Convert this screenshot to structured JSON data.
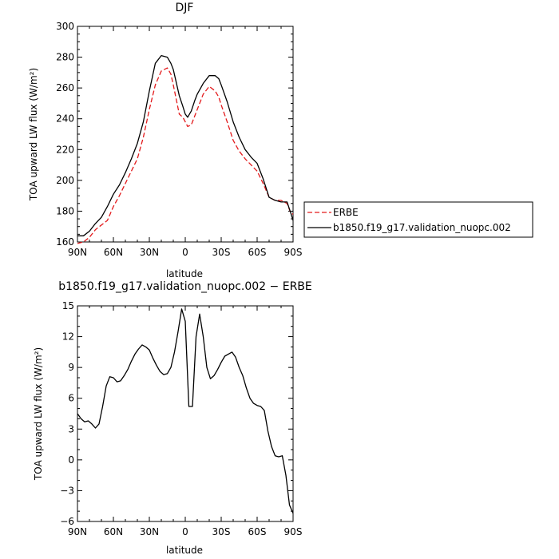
{
  "chart_data": [
    {
      "type": "line",
      "title": "DJF",
      "xlabel": "latitude",
      "ylabel": "TOA upward LW flux (W/m²)",
      "xlim": [
        90,
        -90
      ],
      "ylim": [
        160,
        300
      ],
      "xticks": [
        90,
        60,
        30,
        0,
        -30,
        -60,
        -90
      ],
      "xtick_labels": [
        "90N",
        "60N",
        "30N",
        "0",
        "30S",
        "60S",
        "90S"
      ],
      "yticks": [
        160,
        180,
        200,
        220,
        240,
        260,
        280,
        300
      ],
      "ytick_labels": [
        "160",
        "180",
        "200",
        "220",
        "240",
        "260",
        "280",
        "300"
      ],
      "legend_position": "right",
      "series": [
        {
          "name": "ERBE",
          "color": "#e31a1c",
          "dash": "dashed",
          "x": [
            90,
            85,
            80,
            75,
            70,
            65,
            60,
            55,
            50,
            45,
            40,
            35,
            30,
            25,
            20,
            15,
            12,
            10,
            5,
            2,
            0,
            -2,
            -5,
            -8,
            -10,
            -15,
            -20,
            -25,
            -28,
            -30,
            -35,
            -40,
            -45,
            -50,
            -55,
            -60,
            -65,
            -70,
            -75,
            -80,
            -85,
            -88,
            -90
          ],
          "y": [
            159,
            160,
            163,
            168,
            171,
            174,
            183,
            190,
            198,
            206,
            214,
            228,
            246,
            262,
            271,
            273,
            269,
            262,
            243,
            241,
            238,
            235,
            236,
            242,
            246,
            256,
            261,
            258,
            254,
            249,
            238,
            226,
            219,
            214,
            210,
            206,
            198,
            189,
            187,
            187,
            185,
            179,
            178
          ]
        },
        {
          "name": "b1850.f19_g17.validation_nuopc.002",
          "color": "#000000",
          "dash": "solid",
          "x": [
            90,
            85,
            80,
            75,
            70,
            65,
            60,
            55,
            50,
            45,
            40,
            35,
            30,
            25,
            20,
            15,
            12,
            10,
            5,
            2,
            0,
            -2,
            -5,
            -8,
            -10,
            -15,
            -20,
            -25,
            -28,
            -30,
            -35,
            -40,
            -45,
            -50,
            -55,
            -60,
            -65,
            -70,
            -75,
            -80,
            -85,
            -88,
            -90
          ],
          "y": [
            164,
            164,
            167,
            172,
            176,
            183,
            191,
            197,
            205,
            214,
            224,
            238,
            258,
            276,
            281,
            280,
            276,
            272,
            255,
            248,
            243,
            241,
            245,
            252,
            256,
            263,
            268,
            268,
            266,
            262,
            251,
            238,
            228,
            220,
            215,
            211,
            201,
            189,
            187,
            186,
            186,
            179,
            174
          ]
        }
      ]
    },
    {
      "type": "line",
      "title": "b1850.f19_g17.validation_nuopc.002 − ERBE",
      "xlabel": "latitude",
      "ylabel": "TOA upward LW flux (W/m²)",
      "xlim": [
        90,
        -90
      ],
      "ylim": [
        -6,
        15
      ],
      "xticks": [
        90,
        60,
        30,
        0,
        -30,
        -60,
        -90
      ],
      "xtick_labels": [
        "90N",
        "60N",
        "30N",
        "0",
        "30S",
        "60S",
        "90S"
      ],
      "yticks": [
        -6,
        -3,
        0,
        3,
        6,
        9,
        12,
        15
      ],
      "ytick_labels": [
        "−6",
        "−3",
        "0",
        "3",
        "6",
        "9",
        "12",
        "15"
      ],
      "series": [
        {
          "color": "#000000",
          "dash": "solid",
          "x": [
            90,
            87,
            84,
            81,
            78,
            75,
            72,
            69,
            66,
            63,
            60,
            57,
            54,
            51,
            48,
            45,
            42,
            39,
            36,
            33,
            30,
            27,
            24,
            21,
            18,
            15,
            12,
            9,
            6,
            3,
            0,
            -3,
            -6,
            -9,
            -12,
            -15,
            -18,
            -21,
            -24,
            -27,
            -30,
            -33,
            -36,
            -39,
            -42,
            -45,
            -48,
            -51,
            -54,
            -57,
            -60,
            -63,
            -66,
            -69,
            -72,
            -75,
            -78,
            -81,
            -84,
            -87,
            -90
          ],
          "y": [
            4.5,
            4.0,
            3.7,
            3.8,
            3.5,
            3.1,
            3.5,
            5.2,
            7.2,
            8.1,
            8.0,
            7.6,
            7.7,
            8.2,
            8.8,
            9.6,
            10.3,
            10.8,
            11.2,
            11.0,
            10.7,
            9.9,
            9.2,
            8.6,
            8.3,
            8.4,
            9.0,
            10.5,
            12.5,
            14.7,
            13.5,
            5.2,
            5.2,
            12.0,
            14.2,
            12.0,
            9.0,
            7.9,
            8.2,
            8.8,
            9.5,
            10.1,
            10.3,
            10.5,
            10.0,
            9.0,
            8.2,
            7.0,
            6.0,
            5.5,
            5.3,
            5.2,
            4.8,
            2.8,
            1.3,
            0.4,
            0.3,
            0.4,
            -1.5,
            -4.4,
            -5.2
          ]
        }
      ]
    }
  ]
}
